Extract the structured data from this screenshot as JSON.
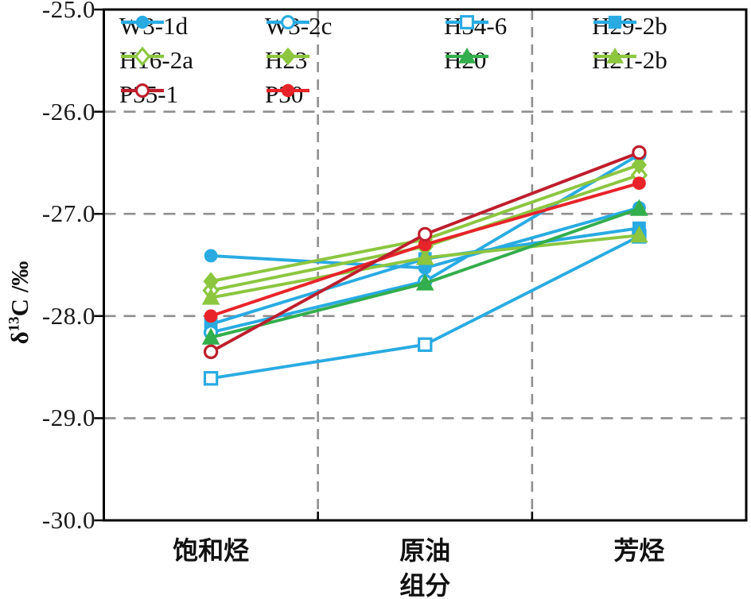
{
  "chart_data": {
    "type": "line",
    "title": "",
    "xlabel": "组分",
    "ylabel": "δ13C /‰",
    "ylabel_parts": {
      "prefix": "δ",
      "sup": "13",
      "suffix": "C /‰"
    },
    "categories": [
      "饱和烃",
      "原油",
      "芳烃"
    ],
    "ylim": [
      -30.0,
      -25.0
    ],
    "yticks": [
      -25.0,
      -26.0,
      -27.0,
      -28.0,
      -29.0,
      -30.0
    ],
    "ytick_labels": [
      "-25.0",
      "-26.0",
      "-27.0",
      "-28.0",
      "-29.0",
      "-30.0"
    ],
    "grid": {
      "horizontal_dashed_at": [
        -26.0,
        -27.0,
        -28.0,
        -29.0
      ],
      "vertical_dashed_at_fractions": [
        0.3333,
        0.6667
      ],
      "color": "#8f8f8f"
    },
    "legend_position": "top-inside",
    "series": [
      {
        "name": "W3-1d",
        "color": "#29ABE2",
        "marker": "circle",
        "filled": true,
        "values": [
          -27.41,
          -27.53,
          -26.94
        ]
      },
      {
        "name": "W3-2c",
        "color": "#29ABE2",
        "marker": "circle",
        "filled": false,
        "values": [
          -28.16,
          -27.66,
          -26.42
        ]
      },
      {
        "name": "H34-6",
        "color": "#29ABE2",
        "marker": "square",
        "filled": false,
        "values": [
          -28.61,
          -28.28,
          -27.22
        ]
      },
      {
        "name": "H29-2b",
        "color": "#29ABE2",
        "marker": "square",
        "filled": true,
        "values": [
          -28.08,
          -27.44,
          -27.14
        ]
      },
      {
        "name": "H16-2a",
        "color": "#8CC63F",
        "marker": "diamond",
        "filled": false,
        "values": [
          -27.75,
          -27.32,
          -26.62
        ]
      },
      {
        "name": "H23",
        "color": "#8CC63F",
        "marker": "diamond",
        "filled": true,
        "values": [
          -27.66,
          -27.25,
          -26.52
        ]
      },
      {
        "name": "H20",
        "color": "#33AE4C",
        "marker": "triangle",
        "filled": true,
        "values": [
          -28.21,
          -27.68,
          -26.95
        ]
      },
      {
        "name": "H21-2b",
        "color": "#8CC63F",
        "marker": "triangle",
        "filled": true,
        "values": [
          -27.82,
          -27.43,
          -27.21
        ]
      },
      {
        "name": "P35-1",
        "color": "#BE1E2D",
        "marker": "circle",
        "filled": false,
        "values": [
          -28.35,
          -27.2,
          -26.4
        ]
      },
      {
        "name": "P30",
        "color": "#E8232A",
        "marker": "circle",
        "filled": true,
        "values": [
          -28.0,
          -27.3,
          -26.7
        ]
      }
    ],
    "draw_order": [
      "H34-6",
      "H29-2b",
      "W3-2c",
      "W3-1d",
      "H16-2a",
      "H23",
      "H21-2b",
      "H20",
      "P30",
      "P35-1"
    ]
  }
}
